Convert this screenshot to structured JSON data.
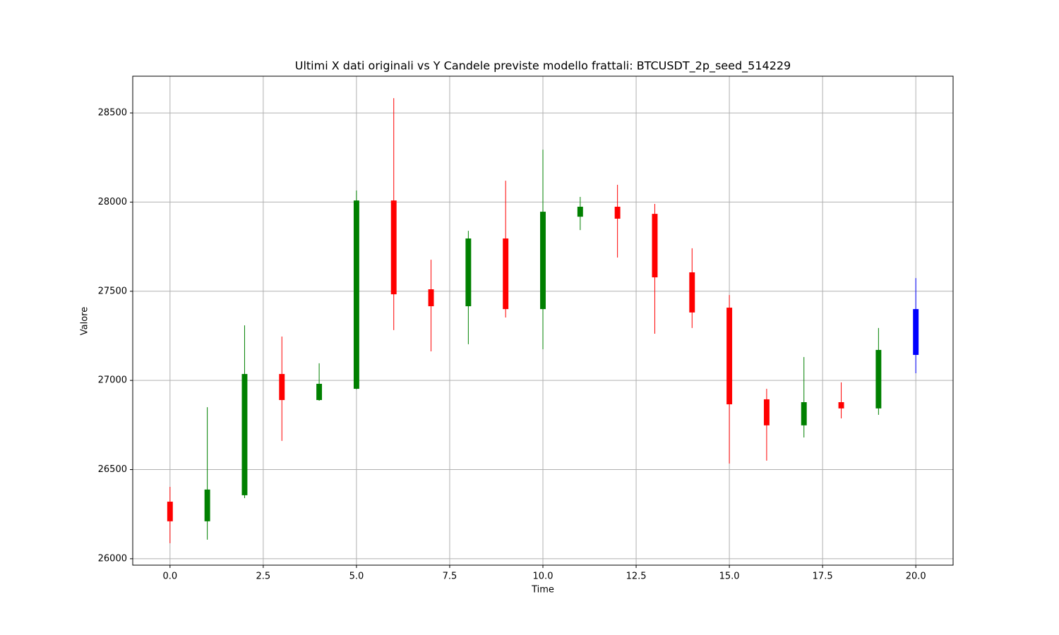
{
  "chart_data": {
    "type": "candlestick",
    "title": "Ultimi X dati originali vs Y Candele previste modello frattali: BTCUSDT_2p_seed_514229",
    "x_label": "Time",
    "y_label": "Valore",
    "x": [
      0,
      1,
      2,
      3,
      4,
      5,
      6,
      7,
      8,
      9,
      10,
      11,
      12,
      13,
      14,
      15,
      16,
      17,
      18,
      19,
      20
    ],
    "open": [
      26320,
      26210,
      26356,
      27036,
      26890,
      26953,
      28009,
      27511,
      27416,
      27796,
      27400,
      27918,
      27974,
      27934,
      27606,
      27408,
      26894,
      26748,
      26878,
      26843,
      27143
    ],
    "high": [
      26403,
      26850,
      27309,
      27246,
      27096,
      28065,
      28583,
      27677,
      27839,
      28120,
      28294,
      28029,
      28097,
      27990,
      27741,
      27479,
      26953,
      27131,
      26989,
      27294,
      27574
    ],
    "low": [
      26087,
      26107,
      26340,
      26661,
      26886,
      26950,
      27282,
      27163,
      27203,
      27353,
      27175,
      27843,
      27689,
      27262,
      27294,
      26534,
      26550,
      26680,
      26787,
      26807,
      27040
    ],
    "close": [
      26210,
      26388,
      27036,
      26890,
      26981,
      28009,
      27483,
      27416,
      27796,
      27400,
      27946,
      27974,
      27907,
      27578,
      27381,
      26866,
      26748,
      26878,
      26843,
      27171,
      27400
    ],
    "colors": [
      "red",
      "green",
      "green",
      "red",
      "green",
      "green",
      "red",
      "red",
      "green",
      "red",
      "green",
      "green",
      "red",
      "red",
      "red",
      "red",
      "red",
      "green",
      "red",
      "green",
      "blue"
    ],
    "xlim": [
      -1,
      21
    ],
    "ylim": [
      25964,
      28706
    ],
    "xticks": [
      {
        "value": 0,
        "label": "0.0"
      },
      2.5,
      {
        "value": 5,
        "label": "5.0"
      },
      7.5,
      {
        "value": 10,
        "label": "10.0"
      },
      12.5,
      {
        "value": 15,
        "label": "15.0"
      },
      17.5,
      {
        "value": 20,
        "label": "20.0"
      }
    ],
    "yticks": [
      26000,
      26500,
      27000,
      27500,
      28000,
      28500
    ],
    "grid": true
  }
}
